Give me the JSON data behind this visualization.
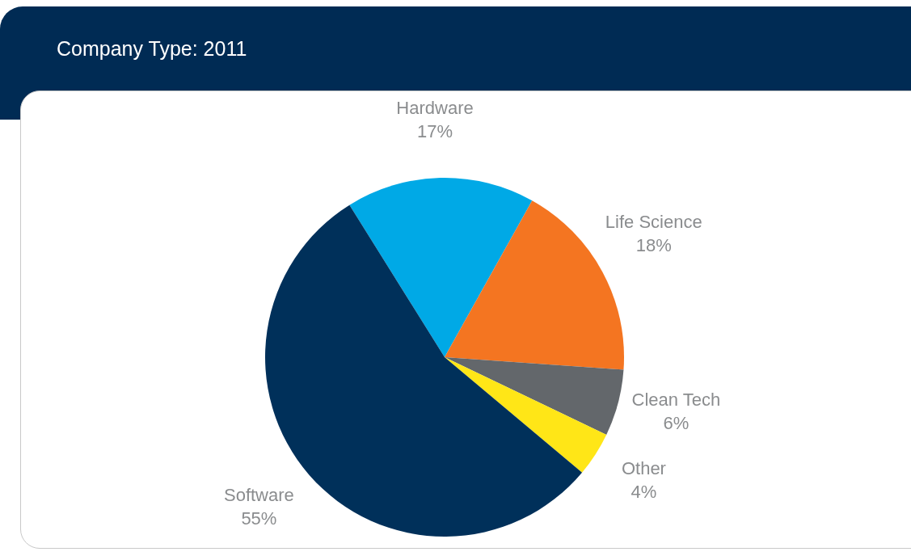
{
  "chart_data": {
    "type": "pie",
    "title": "Company Type: 2011",
    "categories": [
      "Hardware",
      "Life Science",
      "Clean Tech",
      "Other",
      "Software"
    ],
    "values": [
      17,
      18,
      6,
      4,
      55
    ],
    "value_labels": [
      "17%",
      "18%",
      "6%",
      "4%",
      "55%"
    ],
    "colors": [
      "#00a9e6",
      "#f47521",
      "#63676b",
      "#ffe617",
      "#00305a"
    ]
  }
}
